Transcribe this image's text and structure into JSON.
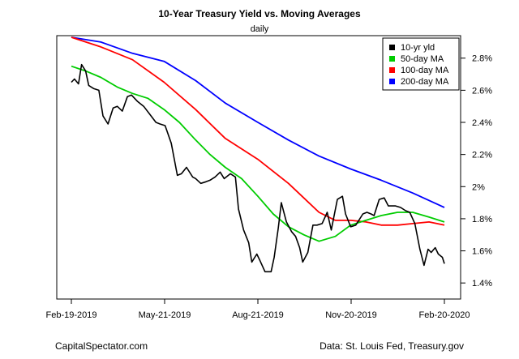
{
  "chart_data": {
    "type": "line",
    "title": "10-Year Treasury Yield vs. Moving Averages",
    "subtitle": "daily",
    "xlabel": "",
    "ylabel": "",
    "x_ticks": [
      "Feb-19-2019",
      "May-21-2019",
      "Aug-21-2019",
      "Nov-20-2019",
      "Feb-20-2020"
    ],
    "y_ticks": [
      "1.4%",
      "1.6%",
      "1.8%",
      "2%",
      "2.2%",
      "2.4%",
      "2.6%",
      "2.8%"
    ],
    "y_tick_values": [
      1.4,
      1.6,
      1.8,
      2.0,
      2.2,
      2.4,
      2.6,
      2.8
    ],
    "ylim": [
      1.3,
      2.94
    ],
    "xlim": [
      "2019-02-19",
      "2020-02-20"
    ],
    "y_axis_side": "right",
    "grid": false,
    "legend_position": "top-right",
    "series": [
      {
        "name": "10-yr yld",
        "color": "#000000",
        "points": [
          [
            "2019-02-19",
            2.65
          ],
          [
            "2019-02-22",
            2.67
          ],
          [
            "2019-02-26",
            2.64
          ],
          [
            "2019-03-01",
            2.76
          ],
          [
            "2019-03-05",
            2.72
          ],
          [
            "2019-03-08",
            2.63
          ],
          [
            "2019-03-13",
            2.61
          ],
          [
            "2019-03-18",
            2.6
          ],
          [
            "2019-03-22",
            2.44
          ],
          [
            "2019-03-27",
            2.39
          ],
          [
            "2019-04-01",
            2.49
          ],
          [
            "2019-04-05",
            2.5
          ],
          [
            "2019-04-10",
            2.47
          ],
          [
            "2019-04-15",
            2.56
          ],
          [
            "2019-04-19",
            2.57
          ],
          [
            "2019-04-25",
            2.53
          ],
          [
            "2019-05-01",
            2.5
          ],
          [
            "2019-05-07",
            2.45
          ],
          [
            "2019-05-13",
            2.4
          ],
          [
            "2019-05-17",
            2.39
          ],
          [
            "2019-05-22",
            2.38
          ],
          [
            "2019-05-28",
            2.27
          ],
          [
            "2019-06-03",
            2.07
          ],
          [
            "2019-06-07",
            2.08
          ],
          [
            "2019-06-12",
            2.12
          ],
          [
            "2019-06-18",
            2.06
          ],
          [
            "2019-06-21",
            2.05
          ],
          [
            "2019-06-26",
            2.02
          ],
          [
            "2019-07-01",
            2.03
          ],
          [
            "2019-07-05",
            2.04
          ],
          [
            "2019-07-10",
            2.06
          ],
          [
            "2019-07-15",
            2.09
          ],
          [
            "2019-07-19",
            2.05
          ],
          [
            "2019-07-25",
            2.08
          ],
          [
            "2019-07-30",
            2.06
          ],
          [
            "2019-08-02",
            1.86
          ],
          [
            "2019-08-07",
            1.73
          ],
          [
            "2019-08-12",
            1.65
          ],
          [
            "2019-08-15",
            1.53
          ],
          [
            "2019-08-20",
            1.58
          ],
          [
            "2019-08-23",
            1.54
          ],
          [
            "2019-08-28",
            1.47
          ],
          [
            "2019-09-03",
            1.47
          ],
          [
            "2019-09-06",
            1.56
          ],
          [
            "2019-09-10",
            1.74
          ],
          [
            "2019-09-13",
            1.9
          ],
          [
            "2019-09-18",
            1.78
          ],
          [
            "2019-09-23",
            1.72
          ],
          [
            "2019-09-27",
            1.69
          ],
          [
            "2019-10-01",
            1.62
          ],
          [
            "2019-10-04",
            1.53
          ],
          [
            "2019-10-09",
            1.59
          ],
          [
            "2019-10-14",
            1.76
          ],
          [
            "2019-10-18",
            1.76
          ],
          [
            "2019-10-23",
            1.77
          ],
          [
            "2019-10-28",
            1.84
          ],
          [
            "2019-11-01",
            1.73
          ],
          [
            "2019-11-07",
            1.92
          ],
          [
            "2019-11-12",
            1.94
          ],
          [
            "2019-11-15",
            1.83
          ],
          [
            "2019-11-20",
            1.75
          ],
          [
            "2019-11-25",
            1.76
          ],
          [
            "2019-12-02",
            1.83
          ],
          [
            "2019-12-06",
            1.84
          ],
          [
            "2019-12-10",
            1.83
          ],
          [
            "2019-12-13",
            1.82
          ],
          [
            "2019-12-18",
            1.92
          ],
          [
            "2019-12-23",
            1.93
          ],
          [
            "2019-12-27",
            1.88
          ],
          [
            "2020-01-03",
            1.88
          ],
          [
            "2020-01-08",
            1.87
          ],
          [
            "2020-01-13",
            1.85
          ],
          [
            "2020-01-17",
            1.84
          ],
          [
            "2020-01-22",
            1.77
          ],
          [
            "2020-01-27",
            1.61
          ],
          [
            "2020-01-31",
            1.51
          ],
          [
            "2020-02-04",
            1.61
          ],
          [
            "2020-02-07",
            1.59
          ],
          [
            "2020-02-11",
            1.62
          ],
          [
            "2020-02-14",
            1.58
          ],
          [
            "2020-02-18",
            1.56
          ],
          [
            "2020-02-20",
            1.52
          ]
        ]
      },
      {
        "name": "50-day MA",
        "color": "#00cc00",
        "points": [
          [
            "2019-02-19",
            2.75
          ],
          [
            "2019-03-05",
            2.72
          ],
          [
            "2019-03-20",
            2.68
          ],
          [
            "2019-04-05",
            2.62
          ],
          [
            "2019-04-20",
            2.58
          ],
          [
            "2019-05-05",
            2.55
          ],
          [
            "2019-05-21",
            2.48
          ],
          [
            "2019-06-05",
            2.4
          ],
          [
            "2019-06-21",
            2.29
          ],
          [
            "2019-07-05",
            2.2
          ],
          [
            "2019-07-20",
            2.12
          ],
          [
            "2019-08-05",
            2.05
          ],
          [
            "2019-08-21",
            1.94
          ],
          [
            "2019-09-05",
            1.83
          ],
          [
            "2019-09-20",
            1.75
          ],
          [
            "2019-10-05",
            1.7
          ],
          [
            "2019-10-20",
            1.66
          ],
          [
            "2019-11-05",
            1.69
          ],
          [
            "2019-11-20",
            1.76
          ],
          [
            "2019-12-05",
            1.79
          ],
          [
            "2019-12-20",
            1.82
          ],
          [
            "2020-01-05",
            1.84
          ],
          [
            "2020-01-20",
            1.84
          ],
          [
            "2020-02-05",
            1.81
          ],
          [
            "2020-02-20",
            1.78
          ]
        ]
      },
      {
        "name": "100-day MA",
        "color": "#ff0000",
        "points": [
          [
            "2019-02-19",
            2.93
          ],
          [
            "2019-03-20",
            2.87
          ],
          [
            "2019-04-20",
            2.79
          ],
          [
            "2019-05-21",
            2.65
          ],
          [
            "2019-06-21",
            2.48
          ],
          [
            "2019-07-20",
            2.3
          ],
          [
            "2019-08-21",
            2.17
          ],
          [
            "2019-09-20",
            2.02
          ],
          [
            "2019-10-05",
            1.93
          ],
          [
            "2019-10-20",
            1.84
          ],
          [
            "2019-11-05",
            1.79
          ],
          [
            "2019-11-20",
            1.79
          ],
          [
            "2019-12-05",
            1.78
          ],
          [
            "2019-12-20",
            1.76
          ],
          [
            "2020-01-05",
            1.76
          ],
          [
            "2020-01-20",
            1.77
          ],
          [
            "2020-02-05",
            1.78
          ],
          [
            "2020-02-20",
            1.76
          ]
        ]
      },
      {
        "name": "200-day MA",
        "color": "#0000ff",
        "points": [
          [
            "2019-02-19",
            2.93
          ],
          [
            "2019-03-20",
            2.9
          ],
          [
            "2019-04-20",
            2.83
          ],
          [
            "2019-05-21",
            2.78
          ],
          [
            "2019-06-21",
            2.66
          ],
          [
            "2019-07-20",
            2.52
          ],
          [
            "2019-08-21",
            2.4
          ],
          [
            "2019-09-20",
            2.29
          ],
          [
            "2019-10-20",
            2.19
          ],
          [
            "2019-11-20",
            2.11
          ],
          [
            "2019-12-20",
            2.04
          ],
          [
            "2020-01-20",
            1.96
          ],
          [
            "2020-02-20",
            1.87
          ]
        ]
      }
    ]
  },
  "footer": {
    "left": "CapitalSpectator.com",
    "right": "Data: St. Louis Fed, Treasury.gov"
  }
}
